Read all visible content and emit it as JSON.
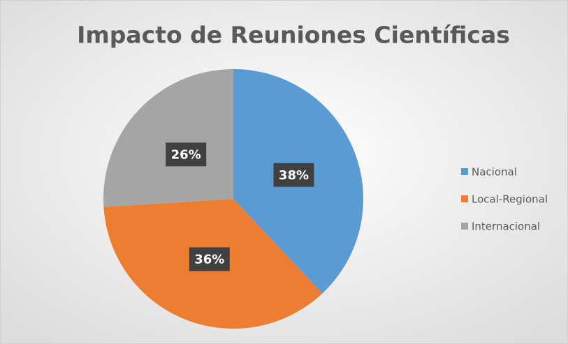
{
  "chart_data": {
    "type": "pie",
    "title": "Impacto de Reuniones Científicas",
    "categories": [
      "Nacional",
      "Local-Regional",
      "Internacional"
    ],
    "values": [
      38,
      36,
      26
    ],
    "value_labels": [
      "38%",
      "36%",
      "26%"
    ],
    "colors": [
      "#5b9bd5",
      "#ed7d31",
      "#a5a5a5"
    ],
    "legend": "right"
  }
}
